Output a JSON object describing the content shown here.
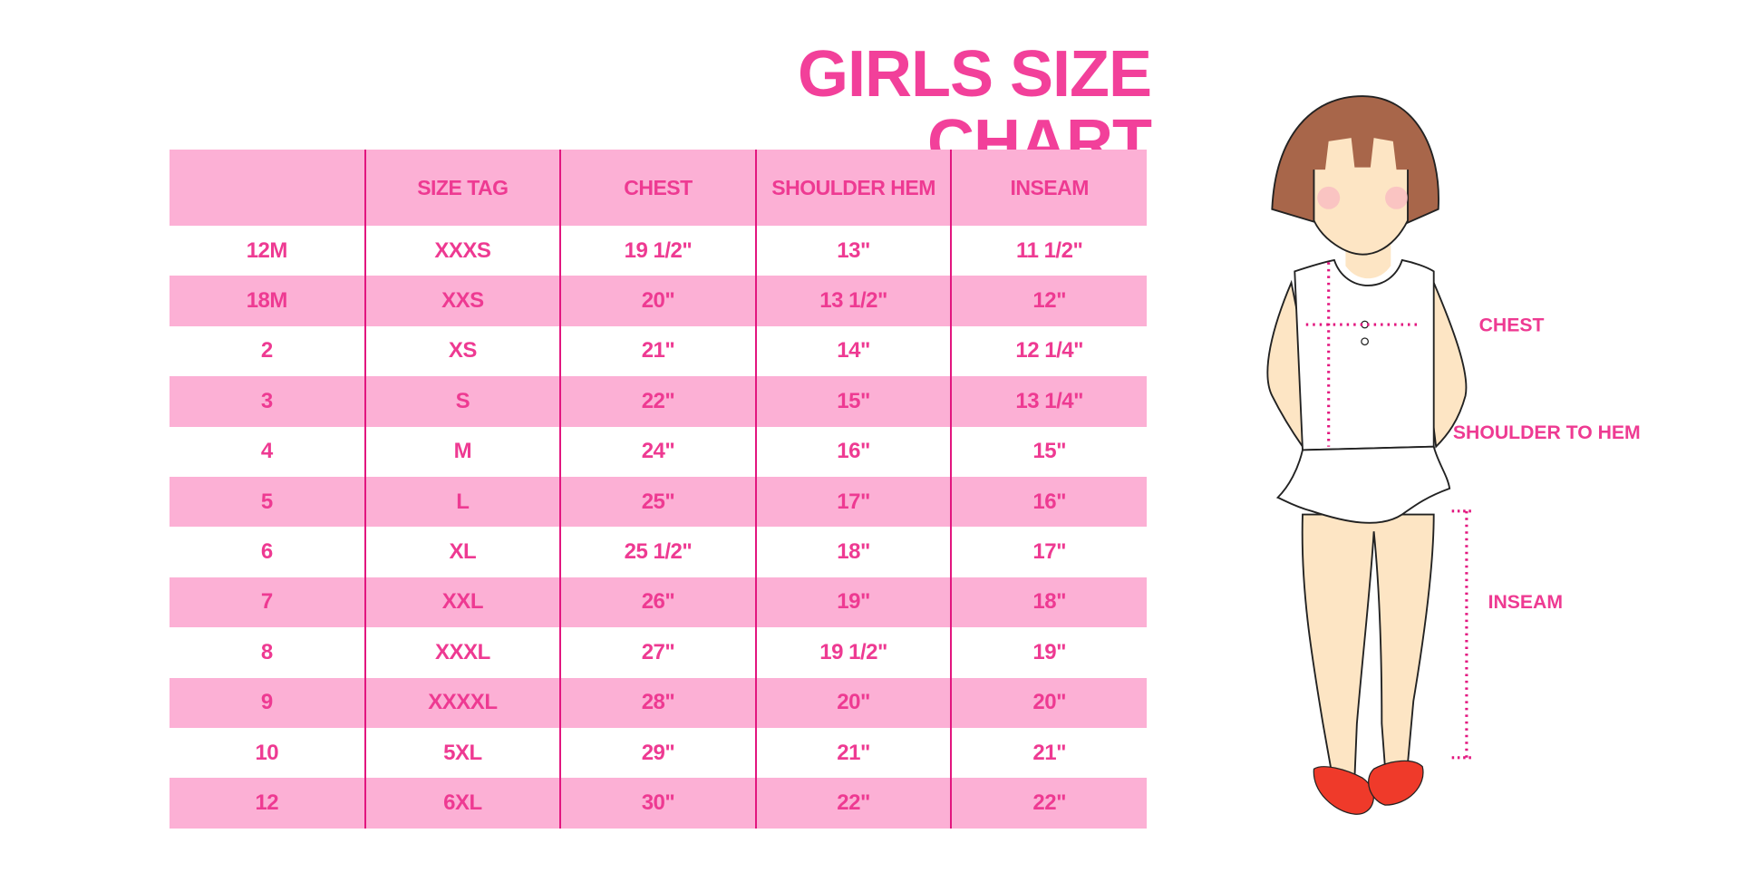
{
  "title": "GIRLS SIZE CHART",
  "table": {
    "headers": [
      "",
      "SIZE TAG",
      "CHEST",
      "SHOULDER HEM",
      "INSEAM"
    ],
    "rows": [
      [
        "12M",
        "XXXS",
        "19 1/2\"",
        "13\"",
        "11 1/2\""
      ],
      [
        "18M",
        "XXS",
        "20\"",
        "13 1/2\"",
        "12\""
      ],
      [
        "2",
        "XS",
        "21\"",
        "14\"",
        "12 1/4\""
      ],
      [
        "3",
        "S",
        "22\"",
        "15\"",
        "13 1/4\""
      ],
      [
        "4",
        "M",
        "24\"",
        "16\"",
        "15\""
      ],
      [
        "5",
        "L",
        "25\"",
        "17\"",
        "16\""
      ],
      [
        "6",
        "XL",
        "25 1/2\"",
        "18\"",
        "17\""
      ],
      [
        "7",
        "XXL",
        "26\"",
        "19\"",
        "18\""
      ],
      [
        "8",
        "XXXL",
        "27\"",
        "19 1/2\"",
        "19\""
      ],
      [
        "9",
        "XXXXL",
        "28\"",
        "20\"",
        "20\""
      ],
      [
        "10",
        "5XL",
        "29\"",
        "21\"",
        "21\""
      ],
      [
        "12",
        "6XL",
        "30\"",
        "22\"",
        "22\""
      ]
    ]
  },
  "figure": {
    "labels": {
      "chest": "CHEST",
      "shoulder_to_hem": "SHOULDER TO HEM",
      "inseam": "INSEAM"
    }
  },
  "colors": {
    "accent": "#ee3a92",
    "row_pink": "#fcb0d5",
    "divider": "#e2167f"
  }
}
